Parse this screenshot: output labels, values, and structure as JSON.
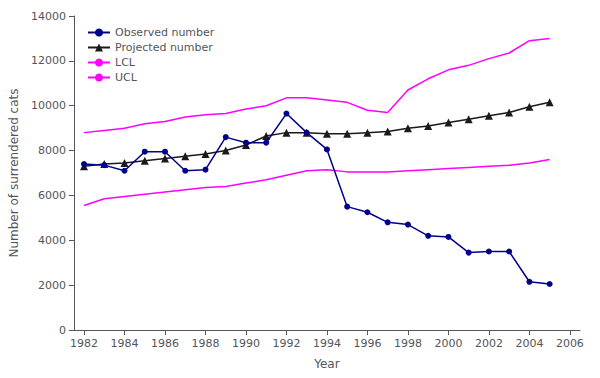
{
  "chart_data": {
    "type": "line",
    "x_label": "Year",
    "y_label": "Number of surrendered cats",
    "x": [
      1982,
      1983,
      1984,
      1985,
      1986,
      1987,
      1988,
      1989,
      1990,
      1991,
      1992,
      1993,
      1994,
      1995,
      1996,
      1997,
      1998,
      1999,
      2000,
      2001,
      2002,
      2003,
      2004,
      2005
    ],
    "series": [
      {
        "name": "UCL",
        "color": "#FF00FF",
        "values": [
          8800,
          8900,
          9000,
          9200,
          9300,
          9500,
          9600,
          9650,
          9850,
          10000,
          10350,
          10350,
          10250,
          10150,
          9800,
          9700,
          10700,
          11200,
          11600,
          11800,
          12100,
          12350,
          12900,
          13000
        ]
      },
      {
        "name": "LCL",
        "color": "#FF00FF",
        "values": [
          5550,
          5850,
          5950,
          6050,
          6150,
          6250,
          6350,
          6400,
          6550,
          6700,
          6900,
          7100,
          7150,
          7050,
          7050,
          7050,
          7100,
          7150,
          7200,
          7250,
          7300,
          7350,
          7450,
          7600
        ]
      },
      {
        "name": "Projected number",
        "color": "#1a1a1a",
        "marker": "triangle",
        "values": [
          7300,
          7400,
          7450,
          7550,
          7650,
          7750,
          7850,
          8000,
          8250,
          8650,
          8800,
          8800,
          8750,
          8750,
          8800,
          8850,
          9000,
          9100,
          9250,
          9400,
          9550,
          9700,
          9950,
          10150
        ]
      },
      {
        "name": "Observed number",
        "color": "#00008B",
        "marker": "circle",
        "values": [
          7400,
          7350,
          7100,
          7950,
          7950,
          7100,
          7150,
          8600,
          8350,
          8350,
          9650,
          8800,
          8050,
          5500,
          5250,
          4800,
          4700,
          4200,
          4150,
          3450,
          3500,
          3500,
          2150,
          2050
        ]
      }
    ],
    "xlim": [
      1981.5,
      2006.5
    ],
    "xticks": [
      1982,
      1984,
      1986,
      1988,
      1990,
      1992,
      1994,
      1996,
      1998,
      2000,
      2002,
      2004,
      2006
    ],
    "ylim": [
      0,
      14000
    ],
    "yticks": [
      0,
      2000,
      4000,
      6000,
      8000,
      10000,
      12000,
      14000
    ],
    "grid": false,
    "legend": "upper left"
  }
}
